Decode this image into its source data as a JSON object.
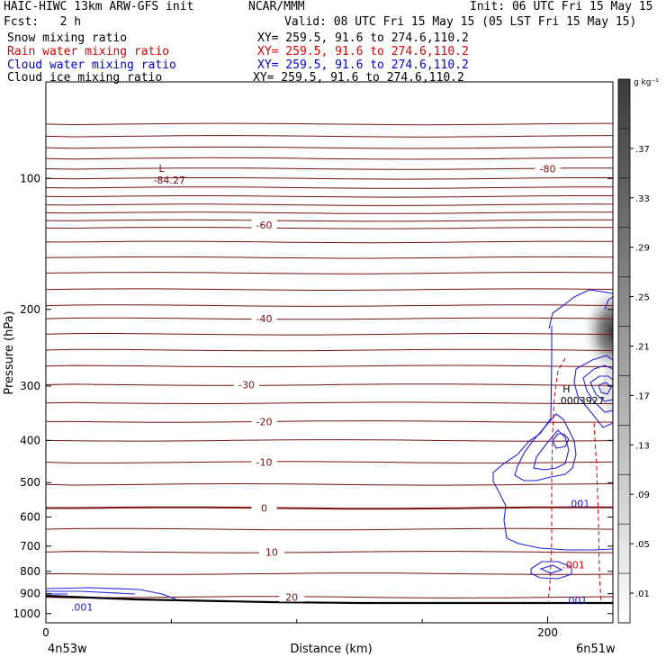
{
  "header": {
    "title_left": "HAIC-HIWC 13km ARW-GFS init",
    "org": "NCAR/MMM",
    "init": "Init: 06 UTC Fri 15 May 15",
    "fcst": "Fcst:   2 h",
    "valid": "Valid: 08 UTC Fri 15 May 15 (05 LST Fri 15 May 15)"
  },
  "fields": [
    {
      "label": "Snow mixing ratio",
      "xy": "XY= 259.5, 91.6 to 274.6,110.2",
      "color": "#000000"
    },
    {
      "label": "Rain water mixing ratio",
      "xy": "XY= 259.5, 91.6 to 274.6,110.2",
      "color": "#dd0000"
    },
    {
      "label": "Cloud water mixing ratio",
      "xy": "XY= 259.5, 91.6 to 274.6,110.2",
      "color": "#0000dd"
    },
    {
      "label": "Cloud ice mixing ratio",
      "xy": "XY= 259.5, 91.6 to 274.6,110.2",
      "color": "#000000"
    }
  ],
  "chart_data": {
    "type": "contour",
    "xlabel": "Distance (km)",
    "ylabel": "Pressure (hPa)",
    "x_ticks": [
      0,
      200
    ],
    "xlim": [
      0,
      226
    ],
    "y_ticks": [
      100,
      200,
      300,
      400,
      500,
      600,
      700,
      800,
      900,
      1000
    ],
    "ylim": [
      1050,
      60
    ],
    "y_scale": "log-pressure",
    "x_start_label": "4n53w",
    "x_end_label": "6n51w",
    "temperature_contour_labels": [
      {
        "value": "-80",
        "x": 200,
        "p": 95
      },
      {
        "value": "-60",
        "x": 87,
        "p": 128
      },
      {
        "value": "-40",
        "x": 87,
        "p": 210
      },
      {
        "value": "-30",
        "x": 80,
        "p": 298
      },
      {
        "value": "-20",
        "x": 87,
        "p": 362
      },
      {
        "value": "-10",
        "x": 87,
        "p": 449
      },
      {
        "value": "0",
        "x": 87,
        "p": 572
      },
      {
        "value": "10",
        "x": 90,
        "p": 722
      },
      {
        "value": "20",
        "x": 98,
        "p": 917
      }
    ],
    "extrema": [
      {
        "type": "L",
        "value": "-84.27",
        "x": 45,
        "p": 98
      },
      {
        "type": "H",
        "value": ".0003927",
        "x": 206,
        "p": 315
      }
    ],
    "cloud_water_labels": [
      {
        "value": ".001",
        "x": 10,
        "p": 985
      },
      {
        "value": ".001",
        "x": 208,
        "p": 570
      },
      {
        "value": ".001",
        "x": 207,
        "p": 950
      }
    ],
    "rain_water_labels": [
      {
        "value": ".001",
        "x": 206,
        "p": 788
      }
    ],
    "colorbar": {
      "unit": "g kg⁻¹",
      "ticks": [
        ".37",
        ".33",
        ".29",
        ".25",
        ".21",
        ".17",
        ".13",
        ".09",
        ".05",
        ".01"
      ]
    }
  }
}
